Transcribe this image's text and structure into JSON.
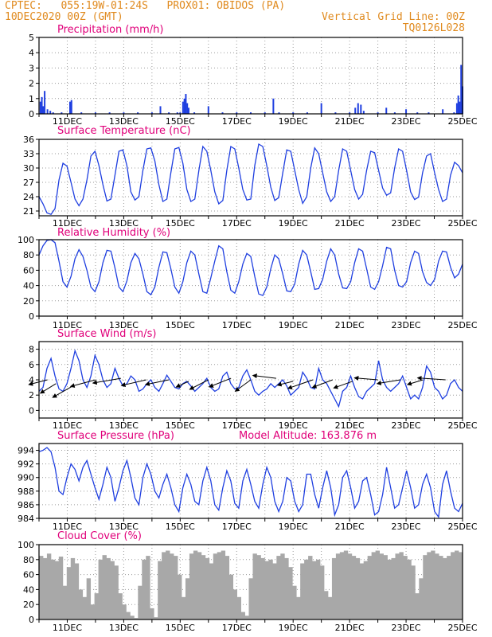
{
  "header": {
    "line1_left": "CPTEC:   055:19W-01:24S   PROX01: OBIDOS (PA)",
    "line2_left": "10DEC2020 00Z (GMT)",
    "line2_right": "Vertical Grid Line: 00Z",
    "line3_right": "TQ0126L028"
  },
  "colors": {
    "header": "#e08a1e",
    "title": "#e0007a",
    "series": "#1f3fe0",
    "cloud": "#a8a8a8",
    "grid": "#9a9a9a"
  },
  "chart_data": [
    {
      "type": "bar",
      "title": "Precipitation (mm/h)",
      "x_start_day": 10,
      "x_end_day": 25,
      "xticks": [
        "11DEC",
        "13DEC",
        "15DEC",
        "17DEC",
        "19DEC",
        "21DEC",
        "23DEC",
        "25DEC"
      ],
      "ylim": [
        0,
        5
      ],
      "yticks": [
        0,
        1,
        2,
        3,
        4,
        5
      ],
      "grid": true,
      "bars": [
        [
          10.05,
          0.8
        ],
        [
          10.1,
          1.1
        ],
        [
          10.15,
          0.5
        ],
        [
          10.2,
          1.5
        ],
        [
          10.3,
          0.3
        ],
        [
          10.4,
          0.2
        ],
        [
          10.5,
          0.1
        ],
        [
          10.8,
          0.1
        ],
        [
          11.1,
          0.8
        ],
        [
          11.15,
          0.9
        ],
        [
          11.5,
          0.1
        ],
        [
          12.0,
          0.1
        ],
        [
          12.5,
          0.1
        ],
        [
          13.0,
          0.1
        ],
        [
          13.5,
          0.1
        ],
        [
          14.0,
          0.1
        ],
        [
          14.3,
          0.5
        ],
        [
          14.6,
          0.1
        ],
        [
          14.9,
          0.1
        ],
        [
          15.0,
          0.1
        ],
        [
          15.1,
          0.8
        ],
        [
          15.15,
          1.0
        ],
        [
          15.2,
          1.3
        ],
        [
          15.25,
          0.7
        ],
        [
          15.3,
          0.4
        ],
        [
          15.5,
          0.1
        ],
        [
          16.0,
          0.5
        ],
        [
          16.5,
          0.1
        ],
        [
          17.0,
          0.1
        ],
        [
          17.5,
          0.1
        ],
        [
          18.0,
          0.1
        ],
        [
          18.3,
          1.0
        ],
        [
          18.5,
          0.1
        ],
        [
          19.0,
          0.1
        ],
        [
          19.5,
          0.1
        ],
        [
          20.0,
          0.7
        ],
        [
          20.5,
          0.1
        ],
        [
          21.0,
          0.1
        ],
        [
          21.2,
          0.4
        ],
        [
          21.3,
          0.7
        ],
        [
          21.4,
          0.6
        ],
        [
          21.5,
          0.2
        ],
        [
          22.0,
          0.1
        ],
        [
          22.3,
          0.4
        ],
        [
          22.6,
          0.1
        ],
        [
          23.0,
          0.3
        ],
        [
          23.4,
          0.1
        ],
        [
          23.8,
          0.1
        ],
        [
          24.3,
          0.3
        ],
        [
          24.7,
          0.1
        ],
        [
          24.8,
          0.7
        ],
        [
          24.85,
          1.2
        ],
        [
          24.9,
          0.8
        ],
        [
          24.95,
          3.2
        ],
        [
          25.0,
          1.8
        ]
      ]
    },
    {
      "type": "line",
      "title": "Surface Temperature (nC)",
      "x_start_day": 10,
      "x_end_day": 25,
      "xticks": [
        "11DEC",
        "13DEC",
        "15DEC",
        "17DEC",
        "19DEC",
        "21DEC",
        "23DEC",
        "25DEC"
      ],
      "ylim": [
        20,
        36
      ],
      "yticks": [
        21,
        24,
        27,
        30,
        33,
        36
      ],
      "grid": true,
      "values": [
        24.0,
        22.5,
        20.6,
        20.3,
        21.5,
        27.5,
        31.0,
        30.4,
        27.0,
        23.5,
        22.1,
        23.5,
        27.5,
        32.5,
        33.5,
        30.5,
        26.5,
        23.1,
        23.5,
        28.5,
        33.5,
        33.8,
        30.5,
        25.0,
        23.3,
        24.0,
        29.5,
        34.0,
        34.2,
        31.5,
        26.5,
        23.0,
        23.5,
        29.0,
        34.0,
        34.3,
        31.0,
        25.5,
        23.0,
        23.5,
        29.5,
        34.5,
        33.5,
        29.5,
        25.0,
        22.5,
        23.2,
        29.5,
        34.5,
        34.0,
        30.0,
        25.5,
        23.3,
        23.5,
        30.5,
        35.0,
        34.5,
        30.5,
        26.0,
        23.2,
        23.8,
        29.0,
        33.8,
        33.5,
        29.5,
        25.5,
        22.6,
        24.0,
        30.0,
        34.2,
        33.0,
        29.0,
        25.0,
        23.0,
        24.0,
        29.5,
        34.0,
        33.5,
        29.5,
        25.5,
        23.5,
        24.5,
        29.5,
        33.5,
        33.2,
        29.5,
        25.8,
        24.3,
        24.8,
        30.0,
        34.0,
        33.5,
        29.5,
        25.0,
        23.4,
        23.9,
        29.0,
        32.5,
        33.0,
        29.0,
        25.5,
        23.0,
        23.5,
        28.5,
        31.2,
        30.5,
        29.0
      ]
    },
    {
      "type": "line",
      "title": "Relative Humidity (%)",
      "x_start_day": 10,
      "x_end_day": 25,
      "xticks": [
        "11DEC",
        "13DEC",
        "15DEC",
        "17DEC",
        "19DEC",
        "21DEC",
        "23DEC",
        "25DEC"
      ],
      "ylim": [
        0,
        100
      ],
      "yticks": [
        0,
        20,
        40,
        60,
        80,
        100
      ],
      "grid": true,
      "values": [
        80,
        92,
        99,
        100,
        96,
        72,
        45,
        38,
        52,
        75,
        87,
        78,
        60,
        38,
        32,
        45,
        70,
        86,
        85,
        63,
        38,
        32,
        46,
        70,
        82,
        75,
        55,
        32,
        28,
        38,
        64,
        84,
        83,
        62,
        38,
        30,
        45,
        70,
        85,
        80,
        55,
        32,
        30,
        50,
        72,
        92,
        88,
        58,
        34,
        30,
        45,
        68,
        82,
        78,
        52,
        29,
        27,
        38,
        62,
        80,
        75,
        55,
        33,
        32,
        42,
        68,
        86,
        80,
        58,
        35,
        36,
        48,
        72,
        88,
        80,
        55,
        37,
        36,
        45,
        70,
        88,
        85,
        62,
        38,
        35,
        45,
        66,
        90,
        88,
        60,
        40,
        38,
        45,
        70,
        85,
        82,
        58,
        44,
        40,
        48,
        72,
        85,
        84,
        64,
        50,
        55,
        68
      ]
    },
    {
      "type": "line",
      "title": "Surface Wind (m/s)",
      "x_start_day": 10,
      "x_end_day": 25,
      "xticks": [
        "11DEC",
        "13DEC",
        "15DEC",
        "17DEC",
        "19DEC",
        "21DEC",
        "23DEC",
        "25DEC"
      ],
      "ylim": [
        -1,
        9
      ],
      "yticks": [
        0,
        2,
        4,
        6,
        8
      ],
      "grid": true,
      "values": [
        2.5,
        3.0,
        5.5,
        6.8,
        4.5,
        2.8,
        2.5,
        3.5,
        5.5,
        7.8,
        6.5,
        4.0,
        3.0,
        4.5,
        7.2,
        6.0,
        4.0,
        3.0,
        3.5,
        5.5,
        4.2,
        3.2,
        3.5,
        4.5,
        4.0,
        2.5,
        2.8,
        3.5,
        4.0,
        3.0,
        2.5,
        3.5,
        4.6,
        3.8,
        3.0,
        2.8,
        3.5,
        3.8,
        3.2,
        2.5,
        3.0,
        3.5,
        4.2,
        3.0,
        2.5,
        2.8,
        4.5,
        5.0,
        3.5,
        2.8,
        3.0,
        4.5,
        5.3,
        4.0,
        2.5,
        2.0,
        2.5,
        2.8,
        3.5,
        3.0,
        3.5,
        4.0,
        3.2,
        2.0,
        2.5,
        3.0,
        5.0,
        4.2,
        3.0,
        2.8,
        5.5,
        4.0,
        3.5,
        2.5,
        1.5,
        0.5,
        2.5,
        3.0,
        4.5,
        3.0,
        1.8,
        1.5,
        2.5,
        3.0,
        3.5,
        6.5,
        4.0,
        3.0,
        2.5,
        3.0,
        3.5,
        4.5,
        3.0,
        1.5,
        2.0,
        1.5,
        3.0,
        5.8,
        5.0,
        3.0,
        2.5,
        1.5,
        2.0,
        3.5,
        4.0,
        3.0,
        2.5
      ],
      "vectors": [
        [
          10.3,
          4.0,
          -1.2,
          -0.5
        ],
        [
          10.6,
          3.5,
          -1.0,
          -1.0
        ],
        [
          11.2,
          3.2,
          -1.3,
          -1.2
        ],
        [
          12.0,
          4.0,
          -1.6,
          -0.7
        ],
        [
          12.9,
          4.2,
          -1.8,
          -0.5
        ],
        [
          13.8,
          4.0,
          -1.6,
          -0.6
        ],
        [
          14.6,
          4.0,
          -1.5,
          -0.5
        ],
        [
          15.3,
          3.8,
          -0.8,
          -0.6
        ],
        [
          16.0,
          4.0,
          -1.2,
          -1.0
        ],
        [
          16.8,
          4.2,
          -1.4,
          -0.9
        ],
        [
          17.5,
          4.0,
          -1.0,
          -1.2
        ],
        [
          18.4,
          4.2,
          -1.5,
          0.3
        ],
        [
          19.0,
          3.8,
          -1.0,
          -0.4
        ],
        [
          19.7,
          4.0,
          -1.6,
          -0.9
        ],
        [
          20.4,
          4.0,
          -1.3,
          -0.8
        ],
        [
          21.1,
          3.8,
          -1.2,
          -0.7
        ],
        [
          22.0,
          4.0,
          -1.5,
          0.2
        ],
        [
          22.8,
          4.0,
          -1.5,
          -0.4
        ],
        [
          23.6,
          4.0,
          -1.0,
          -0.5
        ],
        [
          24.4,
          4.0,
          -1.8,
          0.2
        ]
      ]
    },
    {
      "type": "line",
      "title": "Surface Pressure (hPa)",
      "annotation": "Model Altitude: 163.876 m",
      "x_start_day": 10,
      "x_end_day": 25,
      "xticks": [
        "11DEC",
        "13DEC",
        "15DEC",
        "17DEC",
        "19DEC",
        "21DEC",
        "23DEC",
        "25DEC"
      ],
      "ylim": [
        984,
        995
      ],
      "yticks": [
        984,
        986,
        988,
        990,
        992,
        994
      ],
      "grid": true,
      "values": [
        993.8,
        994.0,
        994.4,
        993.8,
        991.5,
        988.0,
        987.5,
        990.0,
        992.0,
        991.2,
        989.5,
        991.5,
        992.5,
        990.5,
        988.5,
        986.8,
        989.0,
        991.5,
        990.0,
        986.5,
        988.5,
        991.0,
        992.5,
        990.0,
        987.0,
        986.0,
        990.0,
        992.0,
        990.5,
        988.0,
        987.0,
        989.0,
        990.5,
        988.5,
        986.0,
        985.0,
        988.5,
        990.5,
        989.0,
        986.5,
        986.0,
        989.5,
        991.5,
        989.5,
        986.0,
        985.2,
        988.5,
        991.0,
        989.5,
        986.2,
        985.5,
        989.5,
        991.2,
        989.0,
        986.5,
        985.5,
        989.0,
        991.5,
        990.0,
        986.5,
        985.0,
        986.5,
        990.0,
        989.5,
        986.5,
        985.0,
        986.0,
        990.5,
        990.5,
        987.5,
        985.5,
        988.5,
        991.0,
        988.5,
        984.5,
        986.0,
        990.0,
        991.0,
        988.5,
        985.5,
        986.5,
        989.5,
        990.0,
        987.5,
        984.5,
        985.0,
        987.5,
        991.5,
        988.5,
        985.5,
        986.0,
        988.5,
        991.0,
        988.5,
        985.5,
        986.0,
        989.0,
        990.5,
        988.5,
        985.0,
        984.2,
        989.0,
        991.0,
        988.0,
        985.5,
        985.0,
        986.2
      ]
    },
    {
      "type": "bar",
      "title": "Cloud Cover (%)",
      "x_start_day": 10,
      "x_end_day": 25,
      "xticks": [
        "11DEC",
        "13DEC",
        "15DEC",
        "17DEC",
        "19DEC",
        "21DEC",
        "23DEC",
        "25DEC"
      ],
      "ylim": [
        0,
        100
      ],
      "yticks": [
        0,
        20,
        40,
        60,
        80,
        100
      ],
      "grid": true,
      "values": [
        85,
        82,
        88,
        80,
        78,
        84,
        45,
        70,
        82,
        75,
        40,
        30,
        55,
        20,
        35,
        80,
        86,
        82,
        78,
        72,
        35,
        20,
        10,
        5,
        2,
        45,
        80,
        85,
        15,
        3,
        78,
        90,
        92,
        88,
        85,
        60,
        30,
        55,
        88,
        92,
        90,
        86,
        82,
        75,
        88,
        90,
        92,
        85,
        60,
        40,
        30,
        10,
        5,
        55,
        88,
        86,
        82,
        78,
        80,
        75,
        85,
        88,
        82,
        70,
        45,
        30,
        75,
        80,
        85,
        78,
        80,
        72,
        38,
        30,
        82,
        88,
        90,
        92,
        88,
        85,
        82,
        75,
        78,
        85,
        90,
        92,
        88,
        86,
        80,
        82,
        88,
        90,
        85,
        80,
        72,
        35,
        55,
        86,
        90,
        92,
        88,
        85,
        82,
        85,
        90,
        92,
        90
      ]
    }
  ]
}
